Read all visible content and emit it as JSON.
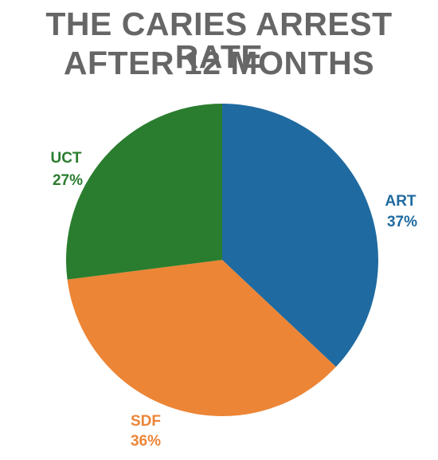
{
  "chart_data": {
    "type": "pie",
    "title_lines": [
      "THE CARIES ARREST RATE",
      "AFTER 12 MONTHS"
    ],
    "slices": [
      {
        "label": "ART",
        "value": 37,
        "value_label": "37%",
        "color": "#1f6aa0"
      },
      {
        "label": "SDF",
        "value": 36,
        "value_label": "36%",
        "color": "#ec8536"
      },
      {
        "label": "UCT",
        "value": 27,
        "value_label": "27%",
        "color": "#2a7d2e"
      }
    ],
    "legend": "none"
  }
}
